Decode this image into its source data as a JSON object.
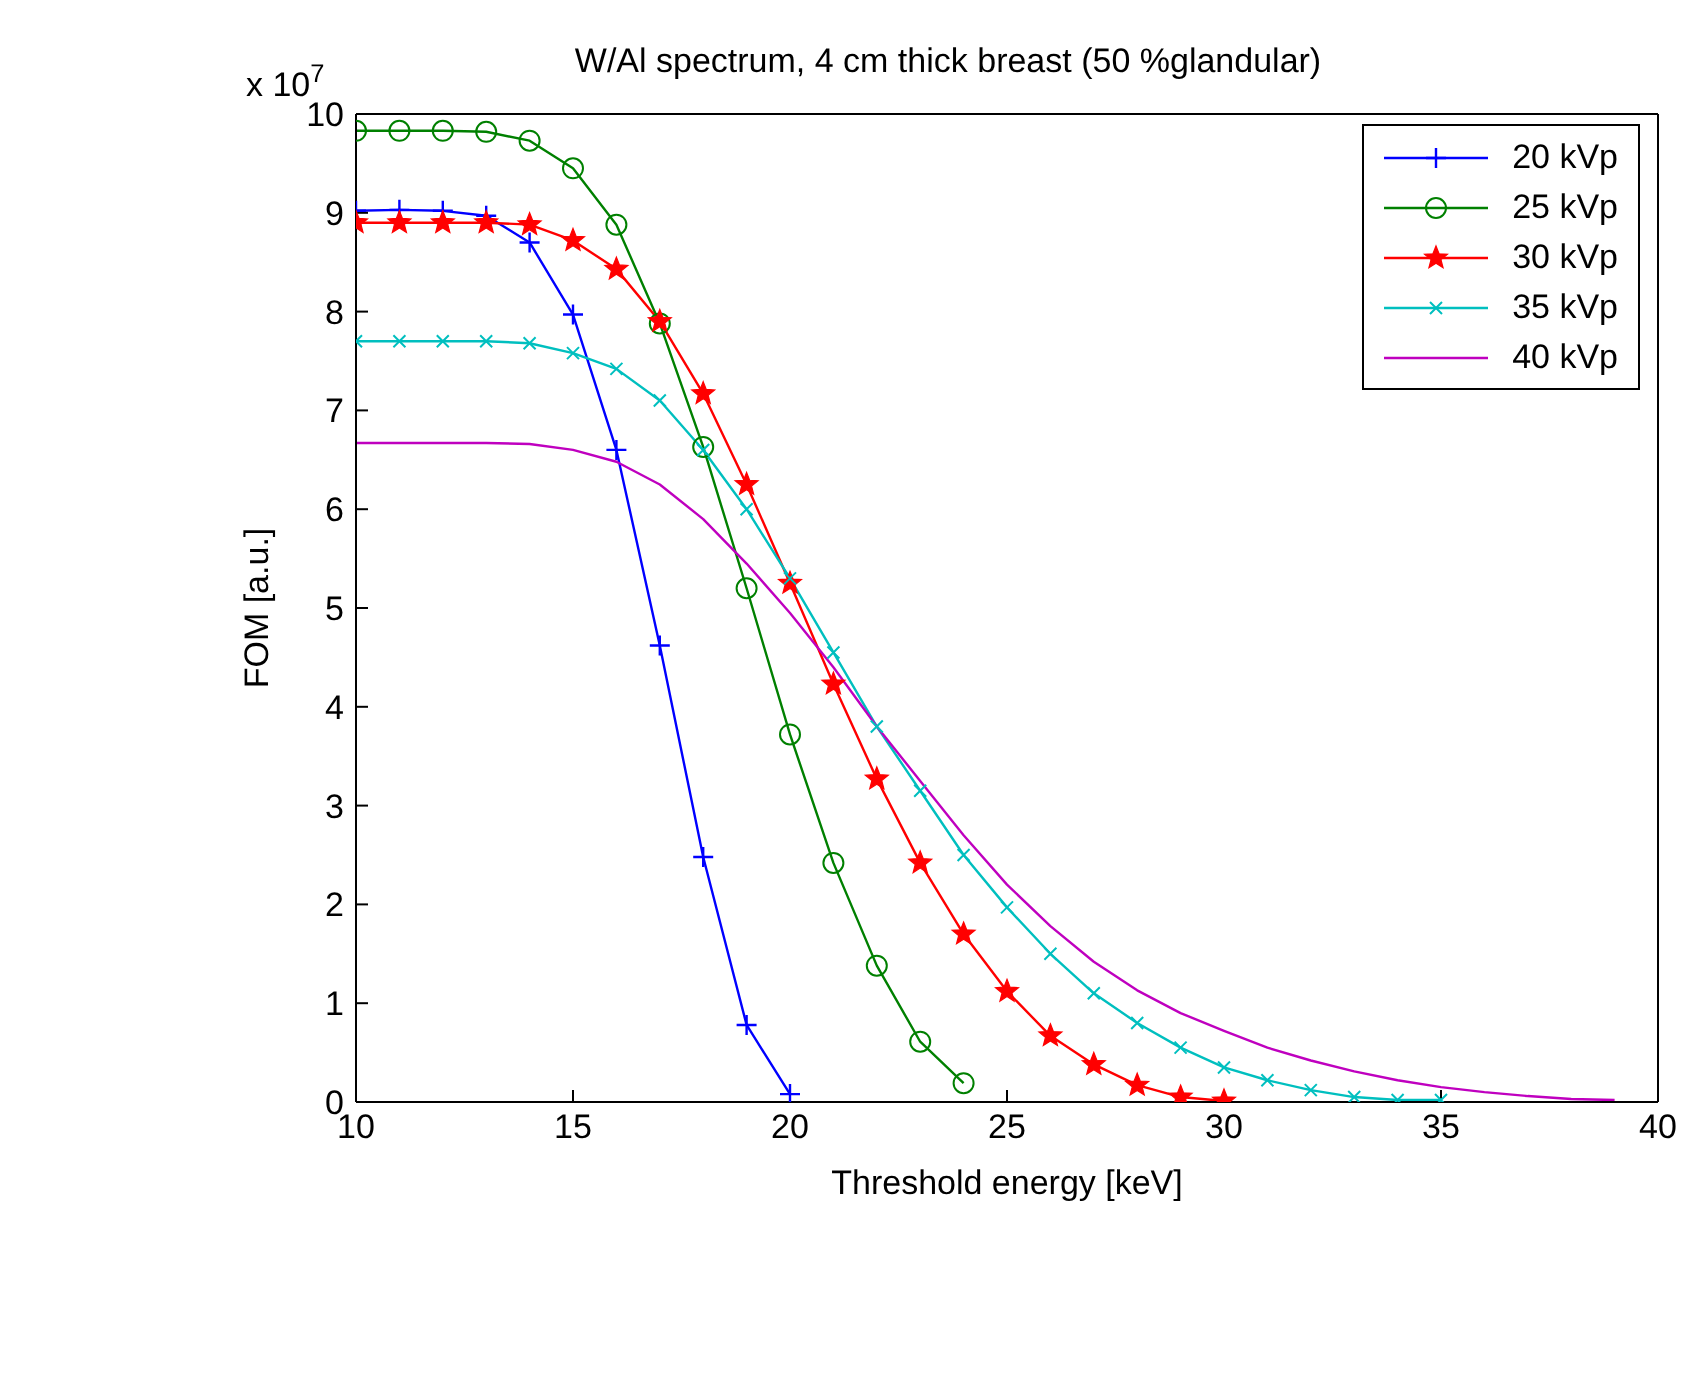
{
  "chart_data": {
    "type": "line",
    "title": "W/Al spectrum, 4 cm thick breast (50 %glandular)",
    "xlabel": "Threshold energy [keV]",
    "ylabel": "FOM [a.u.]",
    "annotations": [
      "x 10$^{7}$"
    ],
    "xlim": [
      10,
      40
    ],
    "xticks": [
      10,
      15,
      20,
      25,
      30,
      35,
      40
    ],
    "ylim": [
      0,
      10
    ],
    "yticks": [
      0,
      1,
      2,
      3,
      4,
      5,
      6,
      7,
      8,
      9,
      10
    ],
    "grid": false,
    "legend": "top right",
    "line_style": "solid",
    "series": [
      {
        "name": "20 kVp",
        "color": "#0000ff",
        "marker": "cross",
        "x": [
          10,
          11,
          12,
          13,
          14,
          15,
          16,
          17,
          18,
          19,
          20
        ],
        "values": [
          9.02,
          9.03,
          9.02,
          8.97,
          8.7,
          7.97,
          6.6,
          4.62,
          2.48,
          0.78,
          0.08
        ]
      },
      {
        "name": "25 kVp",
        "color": "#008000",
        "marker": "circle",
        "x": [
          10,
          11,
          12,
          13,
          14,
          15,
          16,
          17,
          18,
          19,
          20,
          21,
          22,
          23,
          24
        ],
        "values": [
          9.83,
          9.83,
          9.83,
          9.82,
          9.73,
          9.45,
          8.88,
          7.88,
          6.63,
          5.2,
          3.72,
          2.42,
          1.38,
          0.61,
          0.19
        ]
      },
      {
        "name": "30 kVp",
        "color": "#ff0000",
        "marker": "star",
        "x": [
          10,
          11,
          12,
          13,
          14,
          15,
          16,
          17,
          18,
          19,
          20,
          21,
          22,
          23,
          24,
          25,
          26,
          27,
          28,
          29,
          30
        ],
        "values": [
          8.9,
          8.9,
          8.9,
          8.9,
          8.88,
          8.72,
          8.43,
          7.9,
          7.17,
          6.25,
          5.25,
          4.23,
          3.27,
          2.42,
          1.7,
          1.12,
          0.67,
          0.38,
          0.17,
          0.05,
          0.01
        ]
      },
      {
        "name": "35 kVp",
        "color": "#00bfbf",
        "marker": "cross",
        "x": [
          10,
          11,
          12,
          13,
          14,
          15,
          16,
          17,
          18,
          19,
          20,
          21,
          22,
          23,
          24,
          25,
          26,
          27,
          28,
          29,
          30,
          31,
          32,
          33,
          34,
          35
        ],
        "values": [
          7.7,
          7.7,
          7.7,
          7.7,
          7.68,
          7.58,
          7.42,
          7.1,
          6.6,
          6.0,
          5.3,
          4.55,
          3.8,
          3.15,
          2.5,
          1.97,
          1.5,
          1.1,
          0.8,
          0.55,
          0.35,
          0.22,
          0.12,
          0.05,
          0.02,
          0.02
        ]
      },
      {
        "name": "40 kVp",
        "color": "#bf00bf",
        "marker": "none",
        "x": [
          10,
          11,
          12,
          13,
          14,
          15,
          16,
          17,
          18,
          19,
          20,
          21,
          22,
          23,
          24,
          25,
          26,
          27,
          28,
          29,
          30,
          31,
          32,
          33,
          34,
          35,
          36,
          37,
          38,
          39
        ],
        "values": [
          6.67,
          6.67,
          6.67,
          6.67,
          6.66,
          6.6,
          6.48,
          6.25,
          5.9,
          5.45,
          4.95,
          4.4,
          3.8,
          3.25,
          2.7,
          2.2,
          1.78,
          1.42,
          1.13,
          0.9,
          0.72,
          0.55,
          0.42,
          0.31,
          0.22,
          0.15,
          0.1,
          0.06,
          0.03,
          0.02
        ]
      }
    ]
  }
}
